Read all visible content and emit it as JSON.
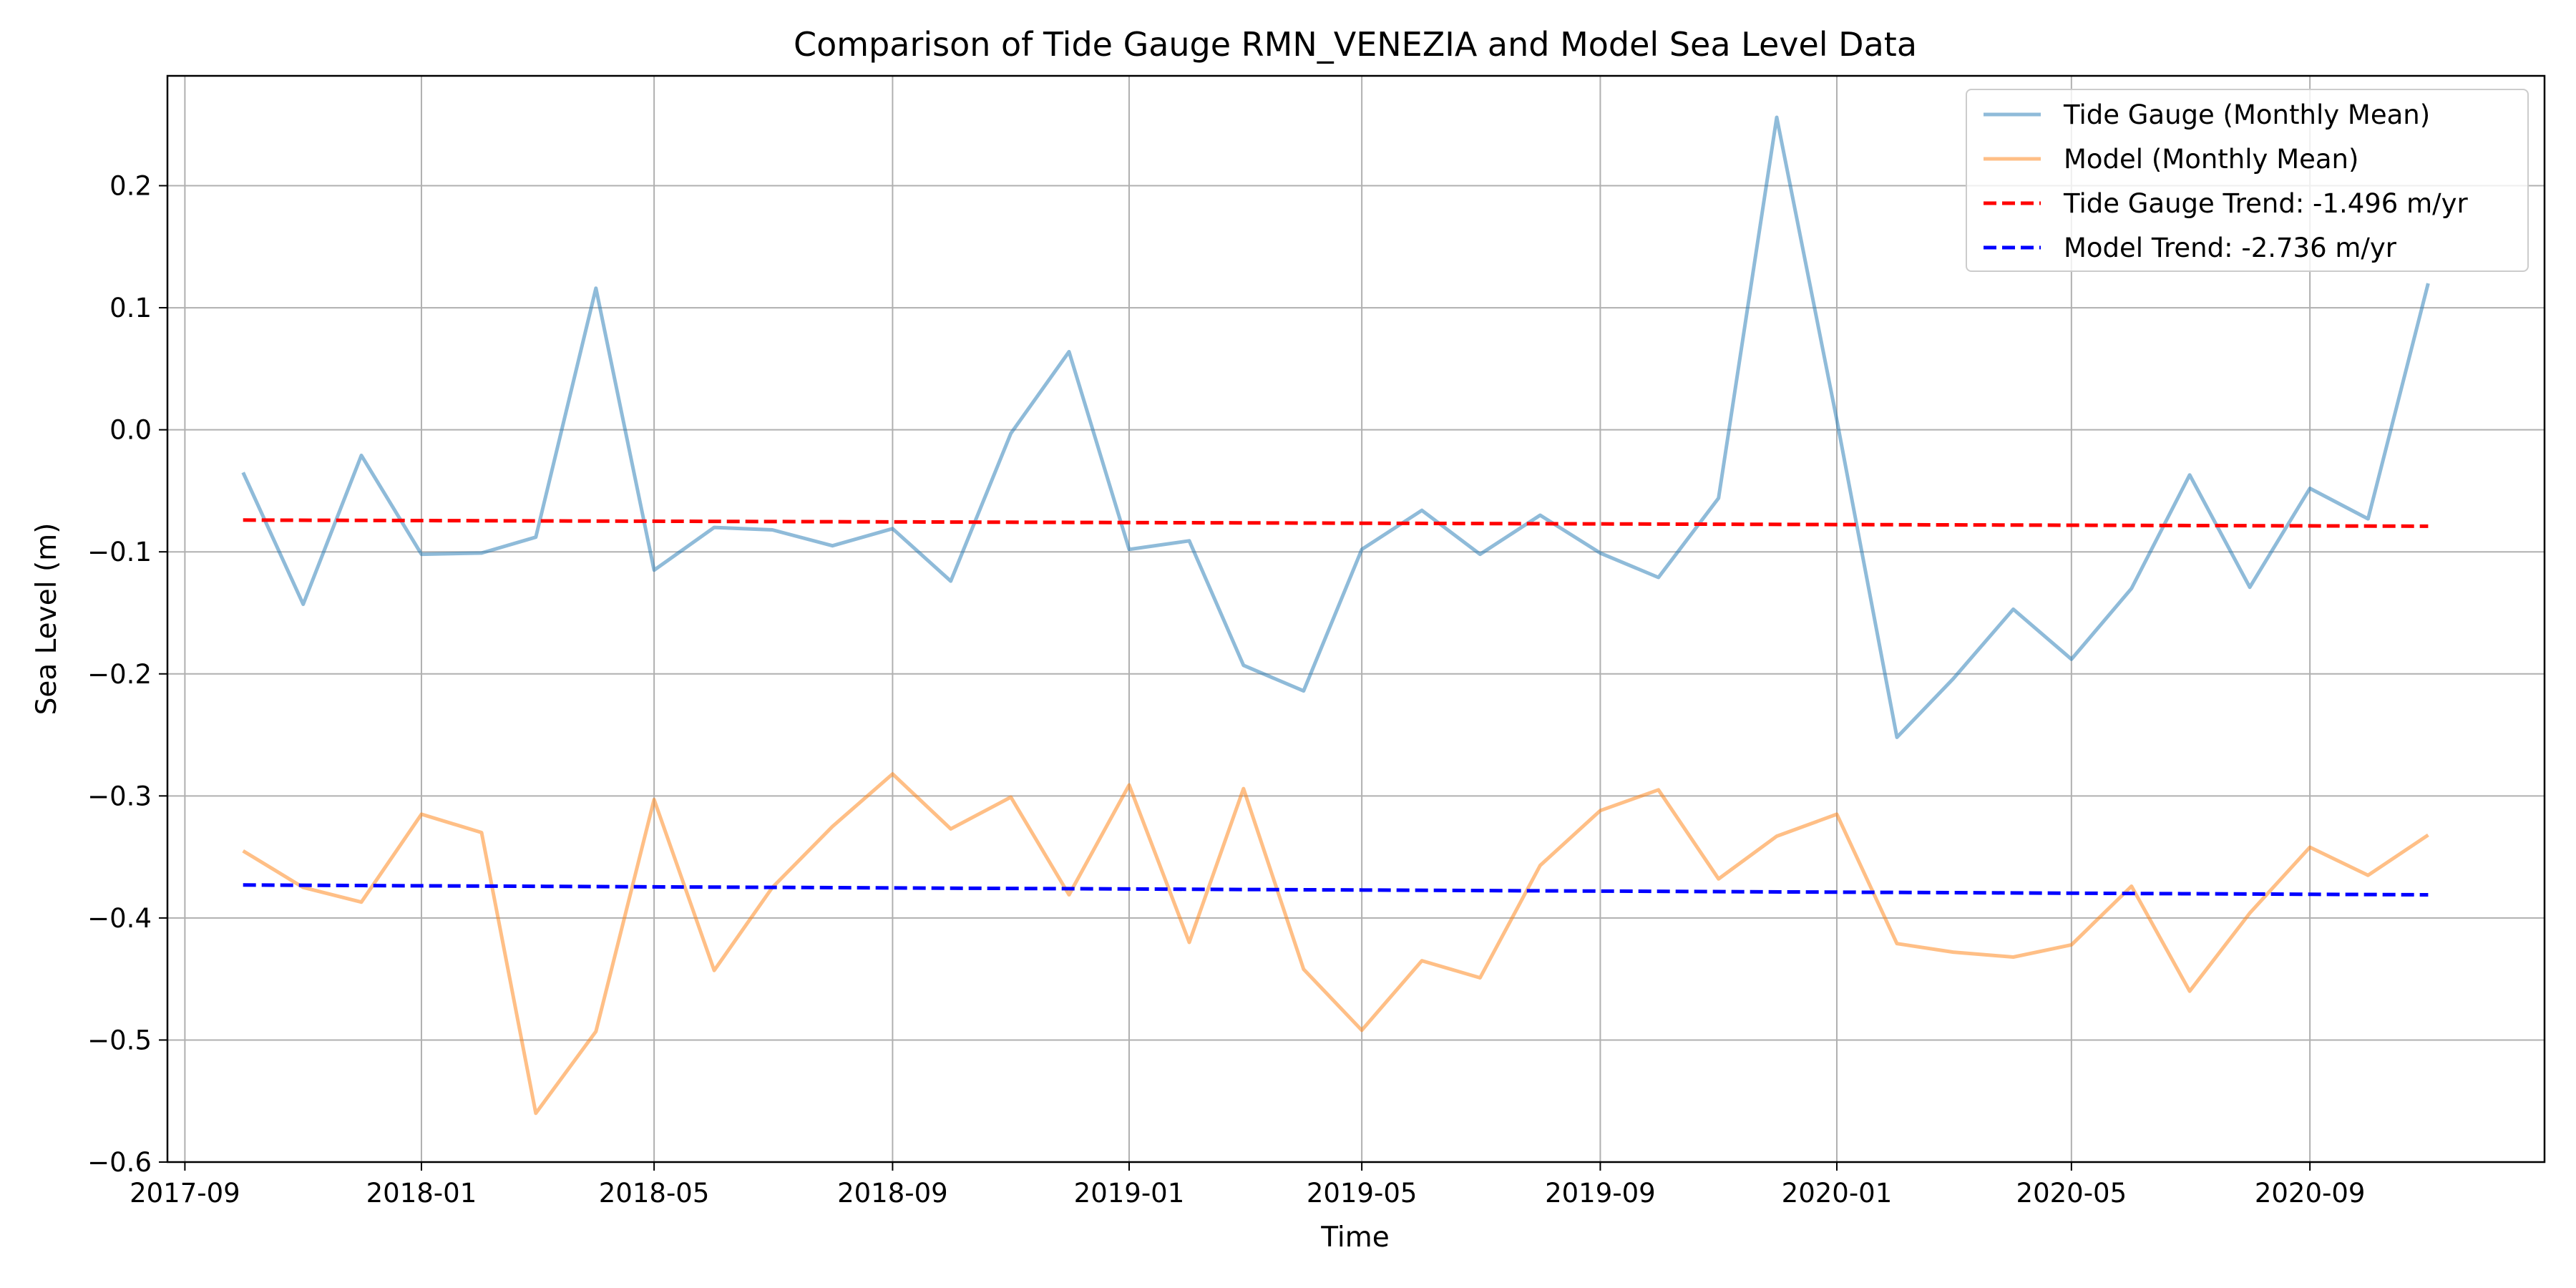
{
  "chart_data": {
    "type": "line",
    "title": "Comparison of Tide Gauge RMN_VENEZIA and Model Sea Level Data",
    "xlabel": "Time",
    "ylabel": "Sea Level (m)",
    "xlim": [
      "2017-08-23",
      "2020-12-31"
    ],
    "ylim": [
      -0.6,
      0.29
    ],
    "grid": true,
    "legend_position": "top-right",
    "x_ticks": [
      "2017-09",
      "2018-01",
      "2018-05",
      "2018-09",
      "2019-01",
      "2019-05",
      "2019-09",
      "2020-01",
      "2020-05",
      "2020-09"
    ],
    "y_ticks": [
      0.2,
      0.1,
      0.0,
      -0.1,
      -0.2,
      -0.3,
      -0.4,
      -0.5,
      -0.6
    ],
    "y_tick_labels": [
      "0.2",
      "0.1",
      "0.0",
      "−0.1",
      "−0.2",
      "−0.3",
      "−0.4",
      "−0.5",
      "−0.6"
    ],
    "x": [
      "2017-10-01",
      "2017-11-01",
      "2017-12-01",
      "2018-01-01",
      "2018-02-01",
      "2018-03-01",
      "2018-04-01",
      "2018-05-01",
      "2018-06-01",
      "2018-07-01",
      "2018-08-01",
      "2018-09-01",
      "2018-10-01",
      "2018-11-01",
      "2018-12-01",
      "2019-01-01",
      "2019-02-01",
      "2019-03-01",
      "2019-04-01",
      "2019-05-01",
      "2019-06-01",
      "2019-07-01",
      "2019-08-01",
      "2019-09-01",
      "2019-10-01",
      "2019-11-01",
      "2019-12-01",
      "2020-01-01",
      "2020-02-01",
      "2020-03-01",
      "2020-04-01",
      "2020-05-01",
      "2020-06-01",
      "2020-07-01",
      "2020-08-01",
      "2020-09-01",
      "2020-10-01",
      "2020-11-01"
    ],
    "series": [
      {
        "name": "Tide Gauge (Monthly Mean)",
        "color": "#1f77b4",
        "opacity": 0.5,
        "style": "solid",
        "values": [
          -0.035,
          -0.143,
          -0.021,
          -0.102,
          -0.101,
          -0.088,
          0.116,
          -0.115,
          -0.08,
          -0.082,
          -0.095,
          -0.081,
          -0.124,
          -0.003,
          0.064,
          -0.098,
          -0.091,
          -0.193,
          -0.214,
          -0.098,
          -0.066,
          -0.102,
          -0.07,
          -0.101,
          -0.121,
          -0.056,
          0.256,
          0.008,
          -0.252,
          -0.204,
          -0.147,
          -0.188,
          -0.13,
          -0.037,
          -0.129,
          -0.048,
          -0.073,
          0.12
        ]
      },
      {
        "name": "Model (Monthly Mean)",
        "color": "#ff7f0e",
        "opacity": 0.5,
        "style": "solid",
        "values": [
          -0.345,
          -0.375,
          -0.387,
          -0.315,
          -0.33,
          -0.56,
          -0.493,
          -0.303,
          -0.443,
          -0.375,
          -0.325,
          -0.282,
          -0.327,
          -0.301,
          -0.381,
          -0.291,
          -0.42,
          -0.294,
          -0.442,
          -0.492,
          -0.435,
          -0.449,
          -0.357,
          -0.312,
          -0.295,
          -0.368,
          -0.333,
          -0.315,
          -0.421,
          -0.428,
          -0.432,
          -0.422,
          -0.374,
          -0.46,
          -0.396,
          -0.342,
          -0.365,
          -0.332
        ]
      },
      {
        "name": "Tide Gauge Trend: -1.496 m/yr",
        "color": "#ff0000",
        "opacity": 1,
        "style": "dashed",
        "x": [
          "2017-10-01",
          "2020-11-01"
        ],
        "values": [
          -0.074,
          -0.079
        ]
      },
      {
        "name": "Model Trend: -2.736 m/yr",
        "color": "#0000ff",
        "opacity": 1,
        "style": "dashed",
        "x": [
          "2017-10-01",
          "2020-11-01"
        ],
        "values": [
          -0.373,
          -0.381
        ]
      }
    ]
  }
}
